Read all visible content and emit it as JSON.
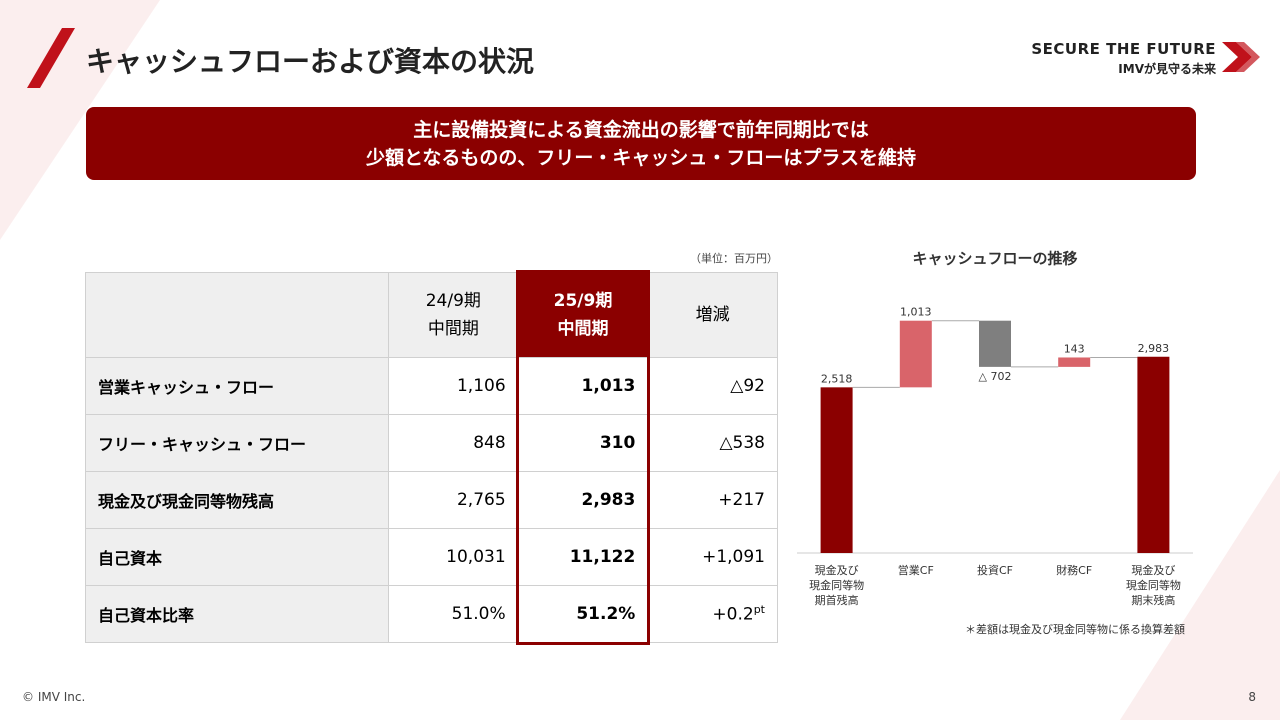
{
  "header": {
    "title": "キャッシュフローおよび資本の状況",
    "brand": "SECURE THE FUTURE",
    "brand_sub": "IMVが見守る未来"
  },
  "banner": [
    "主に設備投資による資金流出の影響で前年同期比では",
    "少額となるものの、フリー・キャッシュ・フローはプラスを維持"
  ],
  "unit_note": "（単位：百万円）",
  "table": {
    "columns": [
      [
        "24/9期",
        "中間期"
      ],
      [
        "25/9期",
        "中間期"
      ],
      [
        "増減"
      ]
    ],
    "rows": [
      [
        "営業キャッシュ・フロー",
        "1,106",
        "1,013",
        "△92"
      ],
      [
        "フリー・キャッシュ・フロー",
        "848",
        "310",
        "△538"
      ],
      [
        "現金及び現金同等物残高",
        "2,765",
        "2,983",
        "+217"
      ],
      [
        "自己資本",
        "10,031",
        "11,122",
        "+1,091"
      ],
      [
        "自己資本比率",
        "51.0%",
        "51.2%",
        {
          "text": "+0.2",
          "unit": "pt"
        }
      ]
    ]
  },
  "chart_data": {
    "type": "waterfall",
    "title": "キャッシュフローの推移",
    "categories": [
      [
        "現金及び",
        "現金同等物",
        "期首残高"
      ],
      [
        "営業CF"
      ],
      [
        "投資CF"
      ],
      [
        "財務CF"
      ],
      [
        "現金及び",
        "現金同等物",
        "期末残高"
      ]
    ],
    "values": [
      2518,
      1013,
      -702,
      143,
      2983
    ],
    "value_labels": [
      "2,518",
      "1,013",
      "△ 702",
      "143",
      "2,983"
    ],
    "totals": [
      true,
      false,
      false,
      false,
      true
    ],
    "colors": [
      "#8b0000",
      "#d9646a",
      "#7f7f7f",
      "#d9646a",
      "#8b0000"
    ],
    "ylim": [
      0,
      3800
    ],
    "note": "＊差額は現金及び現金同等物に係る換算差額"
  },
  "footer": {
    "copyright": "© IMV Inc.",
    "page": "8"
  }
}
